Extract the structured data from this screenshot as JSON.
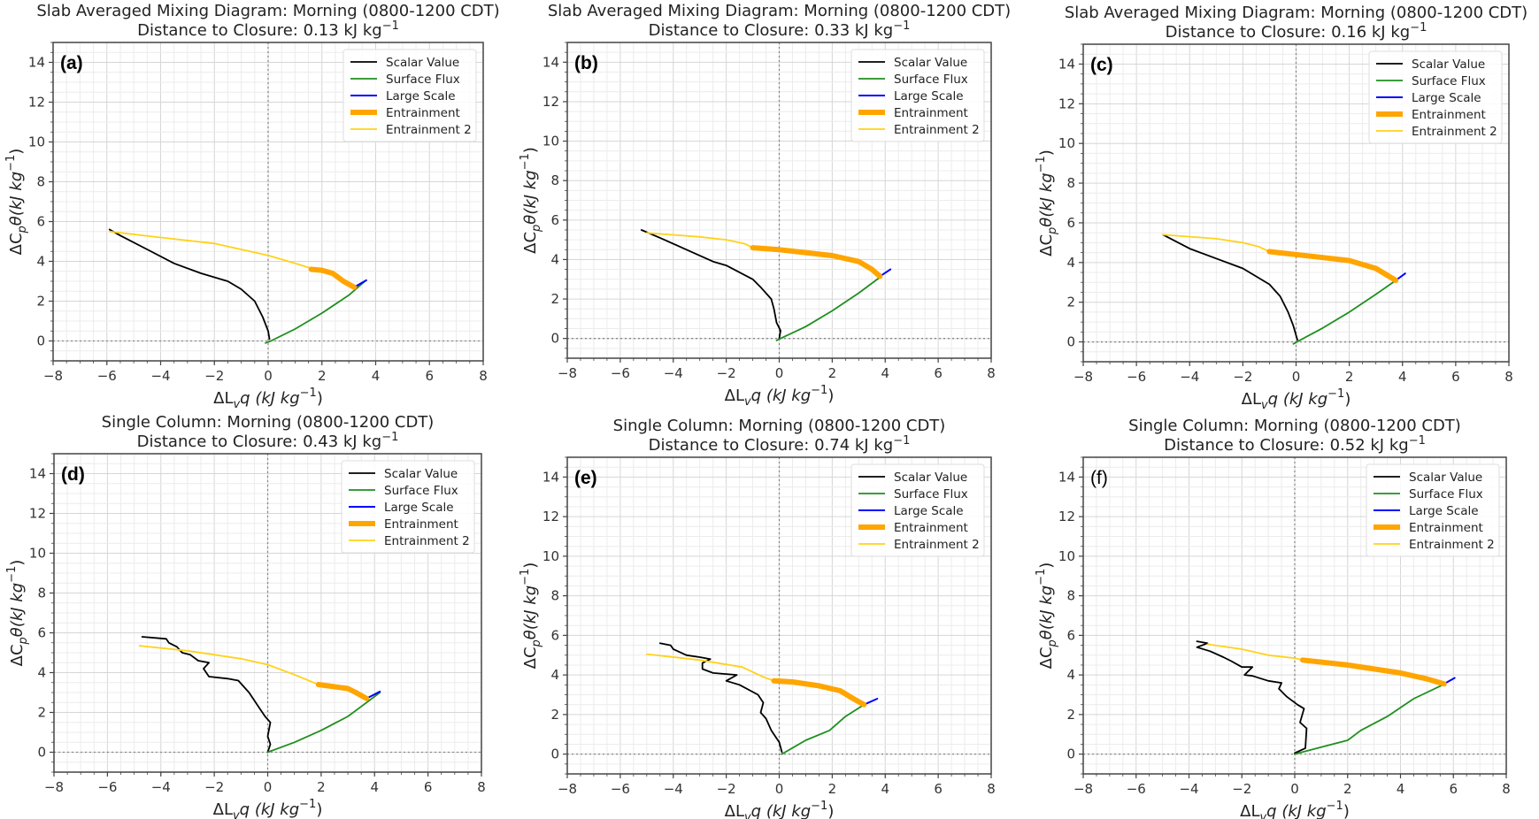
{
  "figure": {
    "colors": {
      "scalar": "#000000",
      "surface": "#1f8f1f",
      "large": "#0000ff",
      "entrain": "#ffa500",
      "entrain2": "#ffd21a"
    }
  },
  "chart_data": [
    {
      "type": "line",
      "panel_label": "(a)",
      "title": "Slab Averaged Mixing Diagram: Morning (0800-1200 CDT)",
      "subtitle": "Distance to Closure: 0.13 kJ kg",
      "subtitle_sup": "−1",
      "xlabel": [
        "ΔL",
        "v",
        "q (kJ kg",
        "−1",
        ")"
      ],
      "ylabel": [
        "ΔC",
        "p",
        "θ(kJ kg",
        "−1",
        ")"
      ],
      "xlim": [
        -8,
        8
      ],
      "ylim": [
        -1,
        15
      ],
      "xticks": [
        "−8",
        "−6",
        "−4",
        "−2",
        "0",
        "2",
        "4",
        "6",
        "8"
      ],
      "yticks": [
        "0",
        "2",
        "4",
        "6",
        "8",
        "10",
        "12",
        "14"
      ],
      "grid": true,
      "legend_position": "top-right",
      "legend": [
        "Scalar Value",
        "Surface Flux",
        "Large Scale",
        "Entrainment",
        "Entrainment 2"
      ],
      "series": [
        {
          "name": "Scalar Value",
          "x": [
            0.05,
            0,
            -0.2,
            -0.5,
            -1,
            -1.5,
            -2.5,
            -3.5,
            -4.5,
            -5.5,
            -5.9
          ],
          "y": [
            0.1,
            0.5,
            1.2,
            2,
            2.6,
            3,
            3.4,
            3.9,
            4.6,
            5.3,
            5.6
          ]
        },
        {
          "name": "Surface Flux",
          "x": [
            -0.1,
            0.1,
            1,
            2,
            3,
            3.6
          ],
          "y": [
            -0.1,
            0,
            0.6,
            1.4,
            2.3,
            3.0
          ]
        },
        {
          "name": "Large Scale",
          "x": [
            3.2,
            3.65
          ],
          "y": [
            2.7,
            3.05
          ]
        },
        {
          "name": "Entrainment 2",
          "x": [
            -5.9,
            -4,
            -2,
            0,
            1,
            1.6
          ],
          "y": [
            5.5,
            5.2,
            4.9,
            4.3,
            3.9,
            3.65
          ]
        },
        {
          "name": "Entrainment",
          "x": [
            1.6,
            2.0,
            2.4,
            2.8,
            3.2
          ],
          "y": [
            3.6,
            3.55,
            3.4,
            3.0,
            2.7
          ]
        }
      ]
    },
    {
      "type": "line",
      "panel_label": "(b)",
      "title": "Slab Averaged Mixing Diagram: Morning (0800-1200 CDT)",
      "subtitle": "Distance to Closure: 0.33 kJ kg",
      "subtitle_sup": "−1",
      "xlabel": [
        "ΔL",
        "v",
        "q (kJ kg",
        "−1",
        ")"
      ],
      "ylabel": [
        "ΔC",
        "p",
        "θ(kJ kg",
        "−1",
        ")"
      ],
      "xlim": [
        -8,
        8
      ],
      "ylim": [
        -1,
        15
      ],
      "xticks": [
        "−8",
        "−6",
        "−4",
        "−2",
        "0",
        "2",
        "4",
        "6",
        "8"
      ],
      "yticks": [
        "0",
        "2",
        "4",
        "6",
        "8",
        "10",
        "12",
        "14"
      ],
      "grid": true,
      "legend_position": "top-right",
      "legend": [
        "Scalar Value",
        "Surface Flux",
        "Large Scale",
        "Entrainment",
        "Entrainment 2"
      ],
      "series": [
        {
          "name": "Scalar Value",
          "x": [
            0,
            0.05,
            -0.1,
            -0.2,
            -0.3,
            -0.7,
            -1,
            -2,
            -2.5,
            -3.5,
            -4.5,
            -5.2
          ],
          "y": [
            0,
            0.4,
            0.8,
            1.5,
            2,
            2.6,
            3,
            3.7,
            3.9,
            4.5,
            5.1,
            5.5
          ]
        },
        {
          "name": "Surface Flux",
          "x": [
            -0.1,
            0.05,
            1,
            2,
            3,
            3.8
          ],
          "y": [
            -0.1,
            0,
            0.6,
            1.4,
            2.3,
            3.1
          ]
        },
        {
          "name": "Large Scale",
          "x": [
            3.8,
            4.2
          ],
          "y": [
            3.15,
            3.5
          ]
        },
        {
          "name": "Entrainment 2",
          "x": [
            -5,
            -3,
            -2,
            -1.3,
            -1
          ],
          "y": [
            5.35,
            5.15,
            5.0,
            4.8,
            4.6
          ]
        },
        {
          "name": "Entrainment",
          "x": [
            -1,
            0,
            1,
            2,
            3,
            3.5,
            3.8
          ],
          "y": [
            4.6,
            4.5,
            4.35,
            4.2,
            3.9,
            3.5,
            3.15
          ]
        }
      ]
    },
    {
      "type": "line",
      "panel_label": "(c)",
      "title": "Slab Averaged Mixing Diagram: Morning (0800-1200 CDT)",
      "subtitle": "Distance to Closure: 0.16 kJ kg",
      "subtitle_sup": "−1",
      "xlabel": [
        "ΔL",
        "v",
        "q (kJ kg",
        "−1",
        ")"
      ],
      "ylabel": [
        "ΔC",
        "p",
        "θ(kJ kg",
        "−1",
        ")"
      ],
      "xlim": [
        -8,
        8
      ],
      "ylim": [
        -1,
        15
      ],
      "xticks": [
        "−8",
        "−6",
        "−4",
        "−2",
        "0",
        "2",
        "4",
        "6",
        "8"
      ],
      "yticks": [
        "0",
        "2",
        "4",
        "6",
        "8",
        "10",
        "12",
        "14"
      ],
      "grid": true,
      "legend_position": "top-right",
      "legend": [
        "Scalar Value",
        "Surface Flux",
        "Large Scale",
        "Entrainment",
        "Entrainment 2"
      ],
      "series": [
        {
          "name": "Scalar Value",
          "x": [
            0.05,
            -0.1,
            -0.3,
            -0.6,
            -1,
            -2,
            -3,
            -4,
            -5
          ],
          "y": [
            0.1,
            0.8,
            1.5,
            2.3,
            2.9,
            3.7,
            4.2,
            4.7,
            5.4
          ]
        },
        {
          "name": "Surface Flux",
          "x": [
            -0.1,
            0.1,
            1,
            2,
            3,
            3.7
          ],
          "y": [
            -0.1,
            0.05,
            0.7,
            1.5,
            2.4,
            3.05
          ]
        },
        {
          "name": "Large Scale",
          "x": [
            3.75,
            4.1
          ],
          "y": [
            3.1,
            3.45
          ]
        },
        {
          "name": "Entrainment 2",
          "x": [
            -5,
            -3,
            -2,
            -1.4,
            -1
          ],
          "y": [
            5.4,
            5.2,
            5.0,
            4.8,
            4.55
          ]
        },
        {
          "name": "Entrainment",
          "x": [
            -1,
            0,
            1,
            2,
            3,
            3.5,
            3.75
          ],
          "y": [
            4.55,
            4.4,
            4.25,
            4.1,
            3.7,
            3.3,
            3.1
          ]
        }
      ]
    },
    {
      "type": "line",
      "panel_label": "(d)",
      "title": "Single Column: Morning (0800-1200 CDT)",
      "subtitle": "Distance to Closure: 0.43 kJ kg",
      "subtitle_sup": "−1",
      "xlabel": [
        "ΔL",
        "v",
        "q (kJ kg",
        "−1",
        ")"
      ],
      "ylabel": [
        "ΔC",
        "p",
        "θ(kJ kg",
        "−1",
        ")"
      ],
      "xlim": [
        -8,
        8
      ],
      "ylim": [
        -1,
        15
      ],
      "xticks": [
        "−8",
        "−6",
        "−4",
        "−2",
        "0",
        "2",
        "4",
        "6",
        "8"
      ],
      "yticks": [
        "0",
        "2",
        "4",
        "6",
        "8",
        "10",
        "12",
        "14"
      ],
      "grid": true,
      "legend_position": "top-right",
      "legend": [
        "Scalar Value",
        "Surface Flux",
        "Large Scale",
        "Entrainment",
        "Entrainment 2"
      ],
      "series": [
        {
          "name": "Scalar Value",
          "x": [
            0,
            0.1,
            0,
            0.1,
            -0.1,
            -0.3,
            -0.5,
            -0.7,
            -1.1,
            -1.5,
            -2.2,
            -2.4,
            -2.2,
            -2.6,
            -2.9,
            -3.2,
            -3.4,
            -3.7,
            -3.8,
            -4.7
          ],
          "y": [
            0,
            0.4,
            0.8,
            1.5,
            1.8,
            2.2,
            2.6,
            3.0,
            3.6,
            3.7,
            3.8,
            4.2,
            4.5,
            4.6,
            4.9,
            5.0,
            5.3,
            5.5,
            5.7,
            5.8
          ]
        },
        {
          "name": "Surface Flux",
          "x": [
            0,
            1,
            2,
            3,
            3.5,
            4.2
          ],
          "y": [
            0,
            0.5,
            1.1,
            1.8,
            2.3,
            3.0
          ]
        },
        {
          "name": "Large Scale",
          "x": [
            3.7,
            4.2
          ],
          "y": [
            2.7,
            3.05
          ]
        },
        {
          "name": "Entrainment 2",
          "x": [
            -4.8,
            -3,
            -1,
            0,
            1,
            1.9
          ],
          "y": [
            5.35,
            5.1,
            4.7,
            4.4,
            3.9,
            3.4
          ]
        },
        {
          "name": "Entrainment",
          "x": [
            1.9,
            3,
            3.3,
            3.7
          ],
          "y": [
            3.4,
            3.2,
            3.0,
            2.7
          ]
        }
      ]
    },
    {
      "type": "line",
      "panel_label": "(e)",
      "title": "Single Column: Morning (0800-1200 CDT)",
      "subtitle": "Distance to Closure: 0.74 kJ kg",
      "subtitle_sup": "−1",
      "xlabel": [
        "ΔL",
        "v",
        "q (kJ kg",
        "−1",
        ")"
      ],
      "ylabel": [
        "ΔC",
        "p",
        "θ(kJ kg",
        "−1",
        ")"
      ],
      "xlim": [
        -8,
        8
      ],
      "ylim": [
        -1,
        15
      ],
      "xticks": [
        "−8",
        "−6",
        "−4",
        "−2",
        "0",
        "2",
        "4",
        "6",
        "8"
      ],
      "yticks": [
        "0",
        "2",
        "4",
        "6",
        "8",
        "10",
        "12",
        "14"
      ],
      "grid": true,
      "legend_position": "top-right",
      "legend": [
        "Scalar Value",
        "Surface Flux",
        "Large Scale",
        "Entrainment",
        "Entrainment 2"
      ],
      "series": [
        {
          "name": "Scalar Value",
          "x": [
            0.1,
            0,
            -0.3,
            -0.5,
            -0.7,
            -0.6,
            -0.8,
            -1.5,
            -2,
            -1.6,
            -2.5,
            -2.9,
            -2.9,
            -2.6,
            -3,
            -3.5,
            -4.0,
            -4.1,
            -4.5
          ],
          "y": [
            0.1,
            0.6,
            1.2,
            1.8,
            2.1,
            2.6,
            3.0,
            3.5,
            3.7,
            4.0,
            4.1,
            4.3,
            4.6,
            4.8,
            4.9,
            5.0,
            5.3,
            5.5,
            5.6
          ]
        },
        {
          "name": "Surface Flux",
          "x": [
            0.1,
            1,
            1.9,
            2.5,
            3.2
          ],
          "y": [
            0,
            0.7,
            1.2,
            1.9,
            2.5
          ]
        },
        {
          "name": "Large Scale",
          "x": [
            3.2,
            3.7
          ],
          "y": [
            2.5,
            2.8
          ]
        },
        {
          "name": "Entrainment 2",
          "x": [
            -5,
            -3,
            -1.4,
            -0.6,
            -0.2
          ],
          "y": [
            5.05,
            4.75,
            4.4,
            3.9,
            3.7
          ]
        },
        {
          "name": "Entrainment",
          "x": [
            -0.2,
            0.5,
            1.5,
            2.3,
            2.8,
            3.2
          ],
          "y": [
            3.7,
            3.65,
            3.45,
            3.2,
            2.8,
            2.5
          ]
        }
      ]
    },
    {
      "type": "line",
      "panel_label": "(f)",
      "title": "Single Column: Morning (0800-1200 CDT)",
      "subtitle": "Distance to Closure: 0.52 kJ kg",
      "subtitle_sup": "−1",
      "xlabel": [
        "ΔL",
        "v",
        "q (kJ kg",
        "−1",
        ")"
      ],
      "ylabel": [
        "ΔC",
        "p",
        "θ(kJ kg",
        "−1",
        ")"
      ],
      "xlim": [
        -8,
        8
      ],
      "ylim": [
        -1,
        15
      ],
      "xticks": [
        "−8",
        "−6",
        "−4",
        "−2",
        "0",
        "2",
        "4",
        "6",
        "8"
      ],
      "yticks": [
        "0",
        "2",
        "4",
        "6",
        "8",
        "10",
        "12",
        "14"
      ],
      "grid": true,
      "legend_position": "top-right",
      "legend": [
        "Scalar Value",
        "Surface Flux",
        "Large Scale",
        "Entrainment",
        "Entrainment 2"
      ],
      "series": [
        {
          "name": "Scalar Value",
          "x": [
            0,
            0.4,
            0.45,
            0.2,
            0.35,
            0.1,
            -0.3,
            -0.6,
            -0.5,
            -1,
            -1.6,
            -1.9,
            -1.6,
            -2,
            -2.4,
            -2.7,
            -3.2,
            -3.7,
            -3.3,
            -3.7
          ],
          "y": [
            0.05,
            0.3,
            1.3,
            1.6,
            2.3,
            2.5,
            2.9,
            3.3,
            3.6,
            3.7,
            3.95,
            4.0,
            4.4,
            4.4,
            4.7,
            4.9,
            5.2,
            5.4,
            5.6,
            5.7
          ]
        },
        {
          "name": "Surface Flux",
          "x": [
            0,
            1,
            2,
            2.5,
            3.5,
            4.5,
            5.6
          ],
          "y": [
            0,
            0.35,
            0.7,
            1.2,
            1.9,
            2.8,
            3.5
          ]
        },
        {
          "name": "Large Scale",
          "x": [
            5.65,
            6.05
          ],
          "y": [
            3.55,
            3.85
          ]
        },
        {
          "name": "Entrainment 2",
          "x": [
            -3.3,
            -2,
            -1,
            0,
            0.3
          ],
          "y": [
            5.55,
            5.3,
            5.0,
            4.85,
            4.75
          ]
        },
        {
          "name": "Entrainment",
          "x": [
            0.3,
            2,
            4,
            5,
            5.65
          ],
          "y": [
            4.75,
            4.5,
            4.1,
            3.8,
            3.55
          ]
        }
      ]
    }
  ]
}
